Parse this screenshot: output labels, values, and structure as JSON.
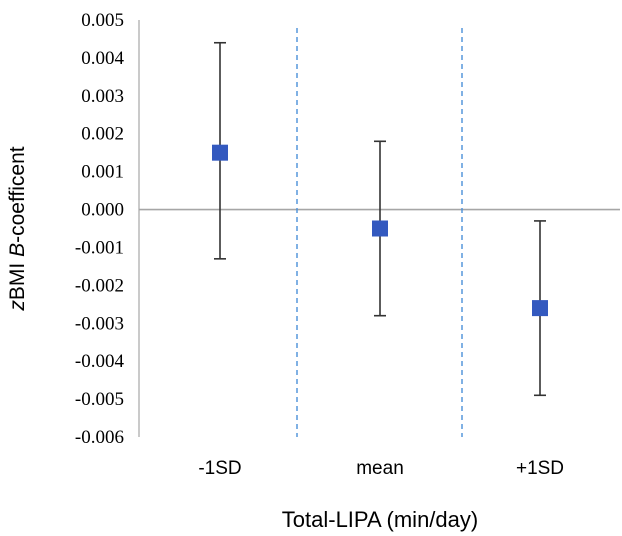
{
  "chart_data": {
    "type": "scatter",
    "categories": [
      "-1SD",
      "mean",
      "+1SD"
    ],
    "series": [
      {
        "values": [
          0.0015,
          -0.0005,
          -0.0026
        ],
        "ci_low": [
          -0.0013,
          -0.0028,
          -0.0049
        ],
        "ci_high": [
          0.0044,
          0.0018,
          -0.0003
        ],
        "color": "#3359bf"
      }
    ],
    "ylim": [
      -0.006,
      0.005
    ],
    "yticks": [
      "0.005",
      "0.004",
      "0.003",
      "0.002",
      "0.001",
      "0.000",
      "-0.001",
      "-0.002",
      "-0.003",
      "-0.004",
      "-0.005",
      "-0.006"
    ],
    "ylabel": {
      "italic_prefix": "z",
      "mid": "BMI ",
      "italic_mid": "B",
      "suffix": "-coefficent"
    },
    "xlabel": "Total-LIPA (min/day)",
    "grid": false,
    "separator_color": "#4a90d9",
    "zero_line_color": "#a6a6a6"
  }
}
